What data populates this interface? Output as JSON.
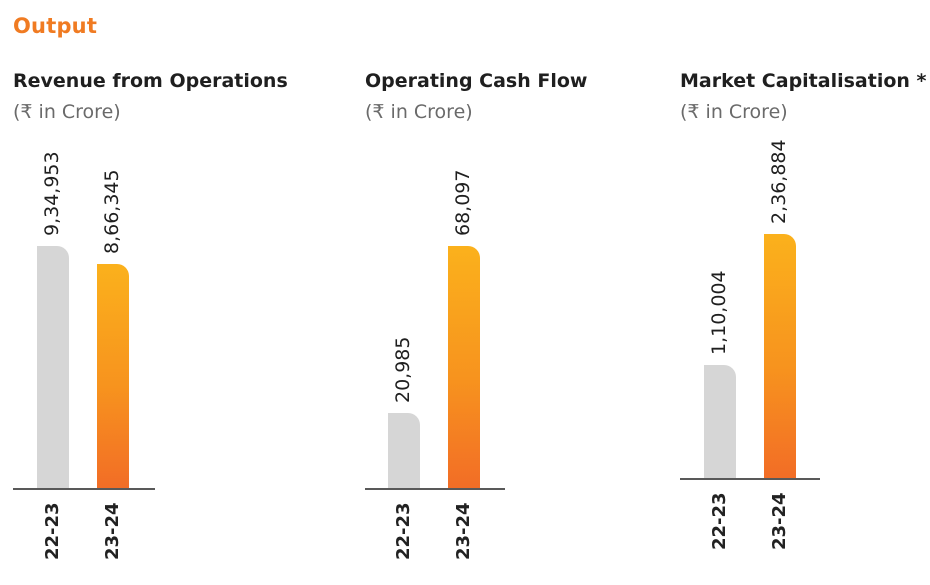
{
  "section_title": "Output",
  "chart_data": [
    {
      "type": "bar",
      "title": "Revenue from Operations",
      "unit": "(₹ in Crore)",
      "categories": [
        "22-23",
        "23-24"
      ],
      "values": [
        934953,
        866345
      ],
      "value_labels": [
        "9,34,953",
        "8,66,345"
      ]
    },
    {
      "type": "bar",
      "title": "Operating Cash Flow",
      "unit": "(₹ in Crore)",
      "categories": [
        "22-23",
        "23-24"
      ],
      "values": [
        20985,
        68097
      ],
      "value_labels": [
        "20,985",
        "68,097"
      ]
    },
    {
      "type": "bar",
      "title": "Market Capitalisation *",
      "unit": "(₹ in Crore)",
      "categories": [
        "22-23",
        "23-24"
      ],
      "values": [
        110004,
        236884
      ],
      "value_labels": [
        "1,10,004",
        "2,36,884"
      ]
    }
  ],
  "colors": {
    "accent": "#f07b22",
    "previous_year_bar": "#d6d6d6",
    "current_year_bar_top": "#fbb11c",
    "current_year_bar_bottom": "#f26d26",
    "axis": "#595959"
  }
}
